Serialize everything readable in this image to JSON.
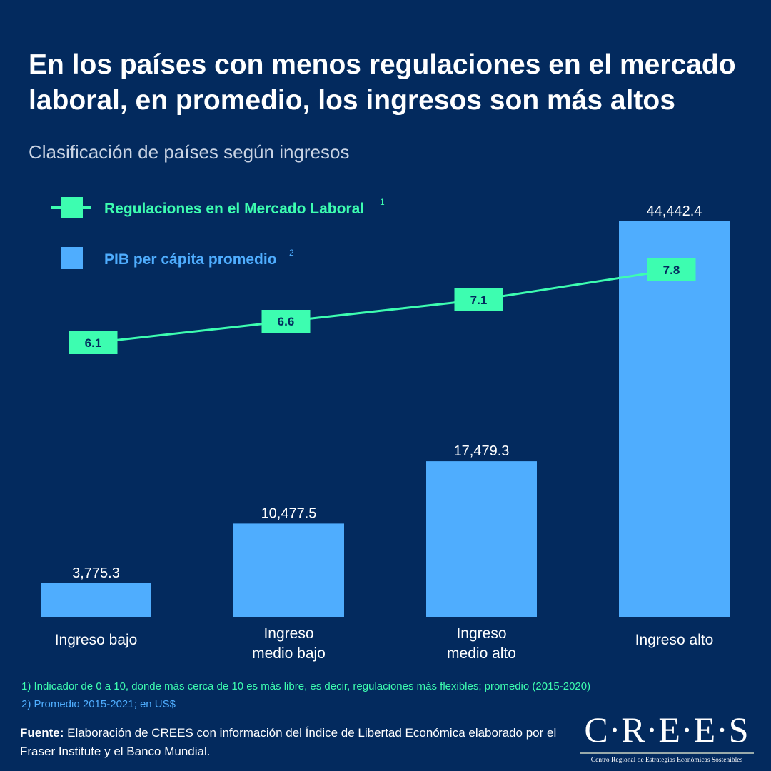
{
  "title": "En los países con menos regulaciones en el mercado laboral, en promedio, los ingresos son más altos",
  "subtitle": "Clasificación de países según ingresos",
  "colors": {
    "background": "#032a5e",
    "line": "#3dfdb0",
    "bar": "#4fadfe"
  },
  "chart_data": {
    "type": "bar+line",
    "categories": [
      "Ingreso bajo",
      "Ingreso medio bajo",
      "Ingreso medio alto",
      "Ingreso alto"
    ],
    "category_lines": [
      [
        "Ingreso bajo"
      ],
      [
        "Ingreso",
        "medio bajo"
      ],
      [
        "Ingreso",
        "medio alto"
      ],
      [
        "Ingreso alto"
      ]
    ],
    "series": [
      {
        "name": "Regulaciones en el Mercado Laboral",
        "sup": "1",
        "type": "line",
        "values": [
          6.1,
          6.6,
          7.1,
          7.8
        ],
        "labels": [
          "6.1",
          "6.6",
          "7.1",
          "7.8"
        ]
      },
      {
        "name": "PIB per cápita promedio",
        "sup": "2",
        "type": "bar",
        "values": [
          3775.3,
          10477.5,
          17479.3,
          44442.4
        ],
        "labels": [
          "3,775.3",
          "10,477.5",
          "17,479.3",
          "44,442.4"
        ]
      }
    ],
    "legend": "top-left",
    "grid": false
  },
  "footnotes": [
    "1) Indicador de 0 a 10, donde más cerca de 10 es más libre, es decir, regulaciones más flexibles; promedio (2015-2020)",
    "2) Promedio 2015-2021; en US$"
  ],
  "source": {
    "label": "Fuente:",
    "text": " Elaboración de CREES con información del Índice de Libertad Económica elaborado por el Fraser Institute y el Banco Mundial."
  },
  "logo": {
    "name": "C·R·E·E·S",
    "tagline": "Centro Regional de Estrategias Económicas Sostenibles"
  }
}
